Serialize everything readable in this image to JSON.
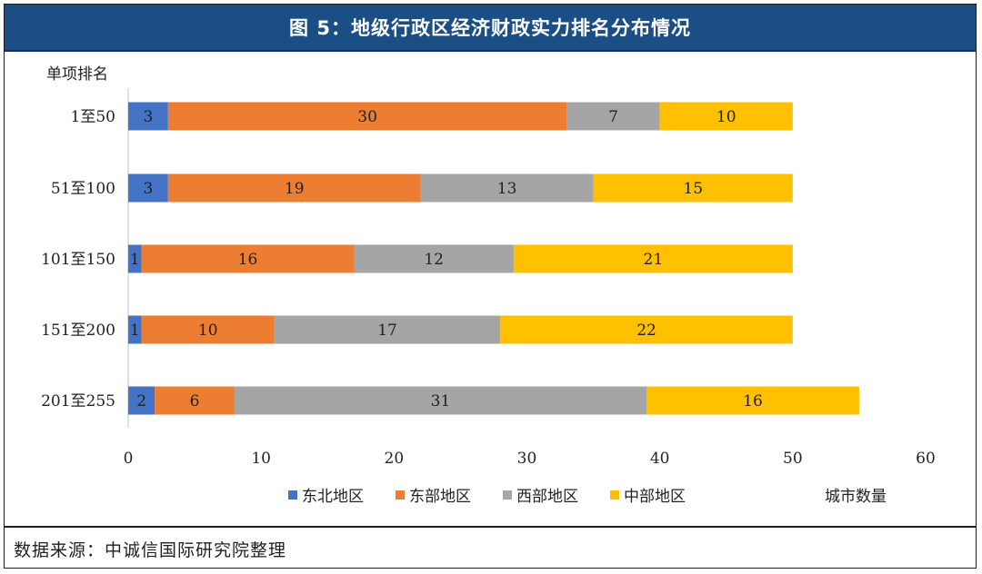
{
  "header": {
    "title": "图 5：地级行政区经济财政实力排名分布情况"
  },
  "footer": {
    "source": "数据来源：中诚信国际研究院整理"
  },
  "colors": {
    "title_bg": "#1c4e86",
    "东北地区": "#4472c4",
    "东部地区": "#ed7d31",
    "西部地区": "#a5a5a5",
    "中部地区": "#ffc000"
  },
  "chart_data": {
    "type": "bar",
    "orientation": "horizontal",
    "stacked": true,
    "ylabel": "单项排名",
    "xlabel": "城市数量",
    "categories": [
      "1至50",
      "51至100",
      "101至150",
      "151至200",
      "201至255"
    ],
    "series": [
      {
        "name": "东北地区",
        "color": "#4472c4",
        "values": [
          3,
          3,
          1,
          1,
          2
        ]
      },
      {
        "name": "东部地区",
        "color": "#ed7d31",
        "values": [
          30,
          19,
          16,
          10,
          6
        ]
      },
      {
        "name": "西部地区",
        "color": "#a5a5a5",
        "values": [
          7,
          13,
          12,
          17,
          31
        ]
      },
      {
        "name": "中部地区",
        "color": "#ffc000",
        "values": [
          10,
          15,
          21,
          22,
          16
        ]
      }
    ],
    "xlim": [
      0,
      60
    ],
    "xticks": [
      0,
      10,
      20,
      30,
      40,
      50,
      60
    ],
    "grid": false,
    "legend": "bottom",
    "data_labels": true
  }
}
